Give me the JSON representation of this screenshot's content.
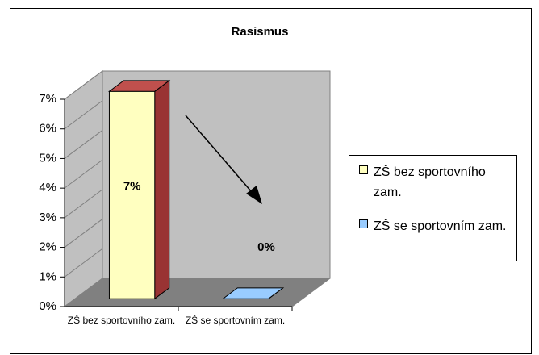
{
  "chart_data": {
    "type": "bar3d",
    "title": "Rasismus",
    "categories": [
      "ZŠ bez sportovního zam.",
      "ZŠ se sportovním zam."
    ],
    "values": [
      7,
      0
    ],
    "value_labels": [
      "7%",
      "0%"
    ],
    "colors": [
      "#ffffc0",
      "#99ccff"
    ],
    "ylim": [
      0,
      7
    ],
    "yticks": [
      {
        "value": 0,
        "label": "0%"
      },
      {
        "value": 1,
        "label": "1%"
      },
      {
        "value": 2,
        "label": "2%"
      },
      {
        "value": 3,
        "label": "3%"
      },
      {
        "value": 4,
        "label": "4%"
      },
      {
        "value": 5,
        "label": "5%"
      },
      {
        "value": 6,
        "label": "6%"
      },
      {
        "value": 7,
        "label": "7%"
      }
    ],
    "legend": "right"
  }
}
